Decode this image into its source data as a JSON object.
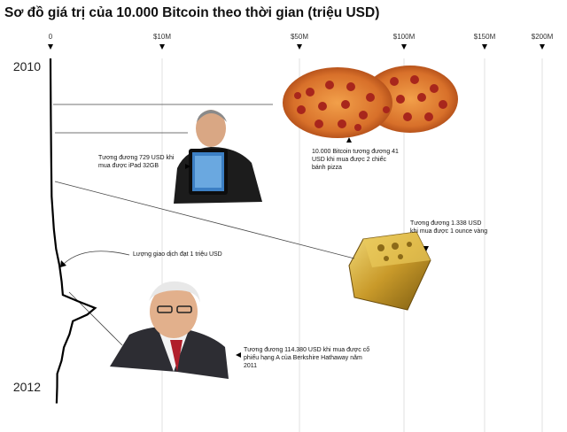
{
  "chart_data": {
    "type": "line",
    "title": "Sơ đồ giá trị của 10.000 Bitcoin theo thời gian (triệu USD)",
    "xlabel": "",
    "ylabel": "",
    "x_ticks": [
      {
        "value": 0,
        "label": "0"
      },
      {
        "value": 10,
        "label": "$10M"
      },
      {
        "value": 50,
        "label": "$50M"
      },
      {
        "value": 100,
        "label": "$100M"
      },
      {
        "value": 150,
        "label": "$150M"
      },
      {
        "value": 200,
        "label": "$200M"
      }
    ],
    "y_ticks": [
      "2010",
      "2012"
    ],
    "grid": true,
    "series": [
      {
        "points": [
          {
            "t": 0.0,
            "v": 0
          },
          {
            "t": 0.06,
            "v": 0.01
          },
          {
            "t": 0.18,
            "v": 0.03
          },
          {
            "t": 0.3,
            "v": 0.06
          },
          {
            "t": 0.42,
            "v": 0.1
          },
          {
            "t": 0.52,
            "v": 0.3
          },
          {
            "t": 0.58,
            "v": 0.5
          },
          {
            "t": 0.63,
            "v": 0.8
          },
          {
            "t": 0.68,
            "v": 1.0
          },
          {
            "t": 0.72,
            "v": 1.1
          },
          {
            "t": 0.74,
            "v": 2.5
          },
          {
            "t": 0.76,
            "v": 4.0
          },
          {
            "t": 0.78,
            "v": 3.2
          },
          {
            "t": 0.8,
            "v": 2.0
          },
          {
            "t": 0.84,
            "v": 1.6
          },
          {
            "t": 0.88,
            "v": 1.2
          },
          {
            "t": 0.92,
            "v": 0.9
          },
          {
            "t": 0.96,
            "v": 0.6
          },
          {
            "t": 1.0,
            "v": 0.5
          },
          {
            "t": 1.05,
            "v": 0.55
          }
        ]
      }
    ],
    "annotations": [
      "10.000 Bitcoin tương đương 41 USD khi mua được 2 chiếc bánh pizza",
      "Tương đương 729 USD khi mua được iPad 32GB",
      "Tương đương 1.338 USD khi mua được 1 ounce vàng",
      "Lượng giao dịch đạt 1 triệu USD",
      "Tương đương 114.380 USD khi mua được cổ phiếu hạng A của Berkshire Hathaway năm 2011"
    ]
  }
}
